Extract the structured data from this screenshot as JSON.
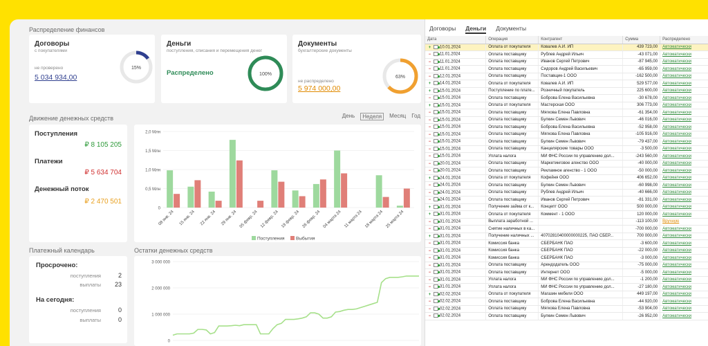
{
  "finance": {
    "title": "Распределение финансов",
    "contracts": {
      "title": "Договоры",
      "subtitle": "с покупателями",
      "label": "не проверено",
      "amount": "5 034 934,00",
      "percent": "15%",
      "fraction": 0.15,
      "color": "#2f3f8f"
    },
    "money": {
      "title": "Деньги",
      "subtitle": "поступления, списания и перемещения денег",
      "status": "Распределено",
      "percent": "100%",
      "fraction": 1.0,
      "color": "#2e8b57"
    },
    "docs": {
      "title": "Документы",
      "subtitle": "бухгалтерские документы",
      "label": "не распределено",
      "amount": "5 974 000,00",
      "percent": "63%",
      "fraction": 0.63,
      "color": "#f0a030"
    }
  },
  "cashflow": {
    "title": "Движение денежных средств",
    "periods": [
      "День",
      "Неделя",
      "Месяц",
      "Год"
    ],
    "active_period": "Неделя",
    "income_label": "Поступления",
    "income_value": "₽ 8 105 205",
    "payments_label": "Платежи",
    "payments_value": "₽ 5 634 704",
    "flow_label": "Денежный поток",
    "flow_value": "₽ 2 470 501"
  },
  "calendar": {
    "title": "Платежный календарь",
    "overdue_label": "Просрочено:",
    "today_label": "На сегодня:",
    "income_sub": "поступления",
    "payments_sub": "выплаты",
    "overdue_income": "2",
    "overdue_payments": "23",
    "today_income": "0",
    "today_payments": "0"
  },
  "balance": {
    "title": "Остатки денежных средств"
  },
  "chart_data": [
    {
      "type": "bar",
      "categories": [
        "08 янв. 24",
        "15 янв. 24",
        "22 янв. 24",
        "29 янв. 24",
        "05 февр. 24",
        "12 февр. 24",
        "19 февр. 24",
        "26 февр. 24",
        "04 марта 24",
        "11 марта 24",
        "18 марта 24",
        "25 марта 24"
      ],
      "series": [
        {
          "name": "Поступления",
          "color": "#9ed99e",
          "values": [
            0.98,
            0.55,
            0.42,
            1.78,
            0.0,
            0.98,
            0.45,
            0.62,
            1.5,
            0.0,
            0.85,
            0.05
          ]
        },
        {
          "name": "Выбытия",
          "color": "#e07f78",
          "values": [
            0.36,
            0.72,
            0.18,
            1.24,
            0.18,
            0.68,
            0.3,
            0.74,
            0.9,
            0.0,
            0.28,
            0.5
          ]
        }
      ],
      "yticks": [
        "0",
        "0,5 Млн",
        "1,0 Млн",
        "1,5 Млн",
        "2,0 Млн"
      ],
      "ylim": [
        0,
        2.0
      ]
    },
    {
      "type": "line",
      "color": "#a6e08a",
      "yticks": [
        "0",
        "1 000 000",
        "2 000 000",
        "3 000 000"
      ],
      "ylim": [
        0,
        3000000
      ],
      "values": [
        200000,
        250000,
        250000,
        250000,
        250000,
        280000,
        420000,
        420000,
        400000,
        250000,
        300000,
        550000,
        550000,
        550000,
        560000,
        580000,
        560000,
        600000,
        600000,
        600000,
        600000,
        250000,
        250000,
        250000,
        450000,
        600000,
        650000,
        800000,
        800000,
        800000,
        820000,
        850000,
        900000,
        1050000,
        1050000,
        1000000,
        850000,
        850000,
        900000,
        1080000,
        1100000,
        1150000,
        1180000,
        1180000,
        1200000,
        1250000,
        1300000,
        1350000,
        1400000,
        1450000,
        2200000,
        2350000,
        2400000,
        2400000,
        2400000,
        2420000,
        2450000,
        2450000,
        2450000,
        2450000
      ]
    }
  ],
  "right": {
    "tabs": [
      "Договоры",
      "Деньги",
      "Документы"
    ],
    "active_tab": "Деньги",
    "columns": [
      "Дата",
      "Операция",
      "Контрагент",
      "Сумма",
      "Распределено"
    ],
    "rows": [
      {
        "sign": "+",
        "date": "10.01.2024",
        "op": "Оплата от покупателя",
        "party": "Ковалев А.И. ИП",
        "sum": "439 723,00",
        "dist": "Автоматически"
      },
      {
        "sign": "−",
        "date": "11.01.2024",
        "op": "Оплата поставщику",
        "party": "Рублев Андрей Ильич",
        "sum": "-43 071,00",
        "dist": "Автоматически"
      },
      {
        "sign": "−",
        "date": "11.01.2024",
        "op": "Оплата поставщику",
        "party": "Иванов Сергей Петрович",
        "sum": "-87 945,00",
        "dist": "Автоматически"
      },
      {
        "sign": "−",
        "date": "11.01.2024",
        "op": "Оплата поставщику",
        "party": "Сидоров Андрей Васильевич",
        "sum": "-65 959,00",
        "dist": "Автоматически"
      },
      {
        "sign": "−",
        "date": "12.01.2024",
        "op": "Оплата поставщику",
        "party": "Поставщик-1 ООО",
        "sum": "-162 500,00",
        "dist": "Автоматически"
      },
      {
        "sign": "+",
        "date": "14.01.2024",
        "op": "Оплата от покупателя",
        "party": "Ковалев А.И. ИП",
        "sum": "529 577,00",
        "dist": "Автоматически"
      },
      {
        "sign": "+",
        "date": "15.01.2024",
        "op": "Поступление по плате...",
        "party": "Розничный покупатель",
        "sum": "225 600,00",
        "dist": "Автоматически"
      },
      {
        "sign": "−",
        "date": "15.01.2024",
        "op": "Оплата поставщику",
        "party": "Боброва Елена Васильевна",
        "sum": "-30 678,00",
        "dist": "Автоматически"
      },
      {
        "sign": "+",
        "date": "15.01.2024",
        "op": "Оплата от покупателя",
        "party": "Мастерская ООО",
        "sum": "306 773,00",
        "dist": "Автоматически"
      },
      {
        "sign": "−",
        "date": "15.01.2024",
        "op": "Оплата поставщику",
        "party": "Мягкова Елена Павловна",
        "sum": "-61 354,00",
        "dist": "Автоматически"
      },
      {
        "sign": "−",
        "date": "15.01.2024",
        "op": "Оплата поставщику",
        "party": "Булкин Семен Львович",
        "sum": "-46 016,00",
        "dist": "Автоматически"
      },
      {
        "sign": "−",
        "date": "15.01.2024",
        "op": "Оплата поставщику",
        "party": "Боброва Елена Васильевна",
        "sum": "-52 958,00",
        "dist": "Автоматически"
      },
      {
        "sign": "−",
        "date": "15.01.2024",
        "op": "Оплата поставщику",
        "party": "Мягкова Елена Павловна",
        "sum": "-105 916,00",
        "dist": "Автоматически"
      },
      {
        "sign": "−",
        "date": "15.01.2024",
        "op": "Оплата поставщику",
        "party": "Булкин Семен Львович",
        "sum": "-79 437,00",
        "dist": "Автоматически"
      },
      {
        "sign": "−",
        "date": "15.01.2024",
        "op": "Оплата поставщику",
        "party": "Канцелярские товары ООО",
        "sum": "-3 500,00",
        "dist": "Автоматически"
      },
      {
        "sign": "−",
        "date": "15.01.2024",
        "op": "Уплата налога",
        "party": "МИ ФНС России по управлению дол...",
        "sum": "-243 560,00",
        "dist": "Автоматически"
      },
      {
        "sign": "−",
        "date": "20.01.2024",
        "op": "Оплата поставщику",
        "party": "Маркетинговое агенство ООО",
        "sum": "-40 000,00",
        "dist": "Автоматически"
      },
      {
        "sign": "−",
        "date": "20.01.2024",
        "op": "Оплата поставщику",
        "party": "Рекламное агенство - 1 ООО",
        "sum": "-50 000,00",
        "dist": "Автоматически"
      },
      {
        "sign": "+",
        "date": "24.01.2024",
        "op": "Оплата от покупателя",
        "party": "Кофейня ООО",
        "sum": "406 652,00",
        "dist": "Автоматически"
      },
      {
        "sign": "−",
        "date": "24.01.2024",
        "op": "Оплата поставщику",
        "party": "Булкин Семен Львович",
        "sum": "-60 998,00",
        "dist": "Автоматически"
      },
      {
        "sign": "−",
        "date": "24.01.2024",
        "op": "Оплата поставщику",
        "party": "Рублев Андрей Ильич",
        "sum": "-40 666,00",
        "dist": "Автоматически"
      },
      {
        "sign": "−",
        "date": "24.01.2024",
        "op": "Оплата поставщику",
        "party": "Иванов Сергей Петрович",
        "sum": "-81 331,00",
        "dist": "Автоматически"
      },
      {
        "sign": "+",
        "date": "31.01.2024",
        "op": "Получение займа от к...",
        "party": "Концепт ООО",
        "sum": "500 000,00",
        "dist": "Автоматически"
      },
      {
        "sign": "+",
        "date": "31.01.2024",
        "op": "Оплата от покупателя",
        "party": "Коммент - 1 ООО",
        "sum": "120 000,00",
        "dist": "Автоматически"
      },
      {
        "sign": "−",
        "date": "31.01.2024",
        "op": "Выплата заработной ...",
        "party": "",
        "sum": "-113 100,00",
        "dist": "Вручную",
        "manual": true
      },
      {
        "sign": "−",
        "date": "31.01.2024",
        "op": "Снятие наличных в ка...",
        "party": "",
        "sum": "-700 000,00",
        "dist": "Автоматически"
      },
      {
        "sign": "+",
        "date": "31.01.2024",
        "op": "Получение наличных ...",
        "party": "40702810400000000225, ПАО СБЕР...",
        "sum": "700 000,00",
        "dist": "Автоматически"
      },
      {
        "sign": "−",
        "date": "31.01.2024",
        "op": "Комиссия банка",
        "party": "СБЕРБАНК ПАО",
        "sum": "-3 600,00",
        "dist": "Автоматически"
      },
      {
        "sign": "−",
        "date": "31.01.2024",
        "op": "Комиссия банка",
        "party": "СБЕРБАНК ПАО",
        "sum": "-22 000,00",
        "dist": "Автоматически"
      },
      {
        "sign": "−",
        "date": "31.01.2024",
        "op": "Комиссия банка",
        "party": "СБЕРБАНК ПАО",
        "sum": "-3 000,00",
        "dist": "Автоматически"
      },
      {
        "sign": "−",
        "date": "31.01.2024",
        "op": "Оплата поставщику",
        "party": "Арендодатель ООО",
        "sum": "-75 000,00",
        "dist": "Автоматически"
      },
      {
        "sign": "−",
        "date": "31.01.2024",
        "op": "Оплата поставщику",
        "party": "Интернет ООО",
        "sum": "-5 000,00",
        "dist": "Автоматически"
      },
      {
        "sign": "−",
        "date": "31.01.2024",
        "op": "Уплата налога",
        "party": "МИ ФНС России по управлению дол...",
        "sum": "-1 200,00",
        "dist": "Автоматически"
      },
      {
        "sign": "−",
        "date": "31.01.2024",
        "op": "Уплата налога",
        "party": "МИ ФНС России по управлению дол...",
        "sum": "-27 180,00",
        "dist": "Автоматически"
      },
      {
        "sign": "+",
        "date": "02.02.2024",
        "op": "Оплата от покупателя",
        "party": "Магазин мебели ООО",
        "sum": "449 197,00",
        "dist": "Автоматически"
      },
      {
        "sign": "−",
        "date": "02.02.2024",
        "op": "Оплата поставщику",
        "party": "Боброва Елена Васильевна",
        "sum": "-44 920,00",
        "dist": "Автоматически"
      },
      {
        "sign": "−",
        "date": "02.02.2024",
        "op": "Оплата поставщику",
        "party": "Мягкова Елена Павловна",
        "sum": "-53 904,00",
        "dist": "Автоматически"
      },
      {
        "sign": "−",
        "date": "02.02.2024",
        "op": "Оплата поставщику",
        "party": "Булкин Семен Львович",
        "sum": "-26 952,00",
        "dist": "Автоматически"
      }
    ]
  }
}
